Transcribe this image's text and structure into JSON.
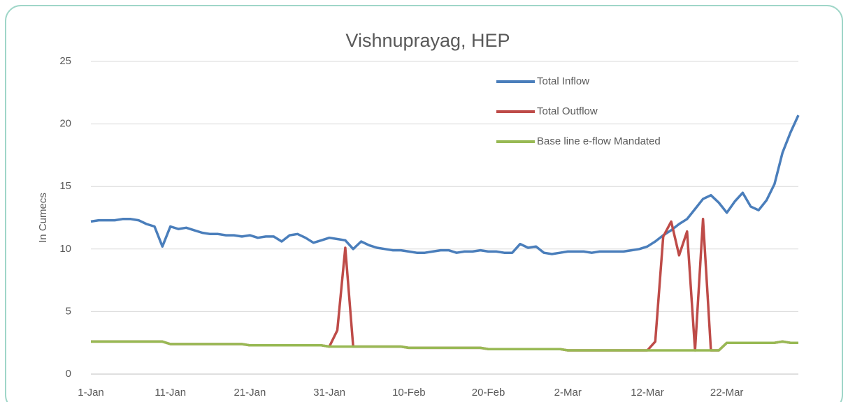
{
  "chart_data": {
    "type": "line",
    "title": "Vishnuprayag, HEP",
    "y_label": "In Cumecs",
    "categories": [
      "1-Jan",
      null,
      null,
      null,
      null,
      null,
      null,
      null,
      null,
      null,
      "11-Jan",
      null,
      null,
      null,
      null,
      null,
      null,
      null,
      null,
      null,
      "21-Jan",
      null,
      null,
      null,
      null,
      null,
      null,
      null,
      null,
      null,
      "31-Jan",
      null,
      null,
      null,
      null,
      null,
      null,
      null,
      null,
      null,
      "10-Feb",
      null,
      null,
      null,
      null,
      null,
      null,
      null,
      null,
      null,
      "20-Feb",
      null,
      null,
      null,
      null,
      null,
      null,
      null,
      null,
      null,
      "2-Mar",
      null,
      null,
      null,
      null,
      null,
      null,
      null,
      null,
      null,
      "12-Mar",
      null,
      null,
      null,
      null,
      null,
      null,
      null,
      null,
      null,
      "22-Mar",
      null,
      null,
      null,
      null,
      null,
      null,
      null,
      null,
      null
    ],
    "series": [
      {
        "name": "Total Inflow",
        "color": "#4a7ebb",
        "values": [
          12.2,
          12.3,
          12.3,
          12.3,
          12.4,
          12.4,
          12.3,
          12.0,
          11.8,
          10.2,
          11.8,
          11.6,
          11.7,
          11.5,
          11.3,
          11.2,
          11.2,
          11.1,
          11.1,
          11.0,
          11.1,
          10.9,
          11.0,
          11.0,
          10.6,
          11.1,
          11.2,
          10.9,
          10.5,
          10.7,
          10.9,
          10.8,
          10.7,
          10.0,
          10.6,
          10.3,
          10.1,
          10.0,
          9.9,
          9.9,
          9.8,
          9.7,
          9.7,
          9.8,
          9.9,
          9.9,
          9.7,
          9.8,
          9.8,
          9.9,
          9.8,
          9.8,
          9.7,
          9.7,
          10.4,
          10.1,
          10.2,
          9.7,
          9.6,
          9.7,
          9.8,
          9.8,
          9.8,
          9.7,
          9.8,
          9.8,
          9.8,
          9.8,
          9.9,
          10.0,
          10.2,
          10.6,
          11.1,
          11.5,
          12.0,
          12.4,
          13.2,
          14.0,
          14.3,
          13.7,
          12.9,
          13.8,
          14.5,
          13.4,
          13.1,
          13.9,
          15.2,
          17.7,
          19.3,
          20.7
        ]
      },
      {
        "name": "Total Outflow",
        "color": "#be4b48",
        "values": [
          2.6,
          2.6,
          2.6,
          2.6,
          2.6,
          2.6,
          2.6,
          2.6,
          2.6,
          2.6,
          2.4,
          2.4,
          2.4,
          2.4,
          2.4,
          2.4,
          2.4,
          2.4,
          2.4,
          2.4,
          2.3,
          2.3,
          2.3,
          2.3,
          2.3,
          2.3,
          2.3,
          2.3,
          2.3,
          2.3,
          2.2,
          3.5,
          10.1,
          2.2,
          2.2,
          2.2,
          2.2,
          2.2,
          2.2,
          2.2,
          2.1,
          2.1,
          2.1,
          2.1,
          2.1,
          2.1,
          2.1,
          2.1,
          2.1,
          2.1,
          2.0,
          2.0,
          2.0,
          2.0,
          2.0,
          2.0,
          2.0,
          2.0,
          2.0,
          2.0,
          1.9,
          1.9,
          1.9,
          1.9,
          1.9,
          1.9,
          1.9,
          1.9,
          1.9,
          1.9,
          1.9,
          2.6,
          11.0,
          12.2,
          9.5,
          11.4,
          1.9,
          12.4,
          1.9,
          1.9,
          2.5,
          2.5,
          2.5,
          2.5,
          2.5,
          2.5,
          2.5,
          2.6,
          2.5,
          2.5
        ]
      },
      {
        "name": "Base line e-flow Mandated",
        "color": "#98b954",
        "values": [
          2.6,
          2.6,
          2.6,
          2.6,
          2.6,
          2.6,
          2.6,
          2.6,
          2.6,
          2.6,
          2.4,
          2.4,
          2.4,
          2.4,
          2.4,
          2.4,
          2.4,
          2.4,
          2.4,
          2.4,
          2.3,
          2.3,
          2.3,
          2.3,
          2.3,
          2.3,
          2.3,
          2.3,
          2.3,
          2.3,
          2.2,
          2.2,
          2.2,
          2.2,
          2.2,
          2.2,
          2.2,
          2.2,
          2.2,
          2.2,
          2.1,
          2.1,
          2.1,
          2.1,
          2.1,
          2.1,
          2.1,
          2.1,
          2.1,
          2.1,
          2.0,
          2.0,
          2.0,
          2.0,
          2.0,
          2.0,
          2.0,
          2.0,
          2.0,
          2.0,
          1.9,
          1.9,
          1.9,
          1.9,
          1.9,
          1.9,
          1.9,
          1.9,
          1.9,
          1.9,
          1.9,
          1.9,
          1.9,
          1.9,
          1.9,
          1.9,
          1.9,
          1.9,
          1.9,
          1.9,
          2.5,
          2.5,
          2.5,
          2.5,
          2.5,
          2.5,
          2.5,
          2.6,
          2.5,
          2.5
        ]
      }
    ],
    "ylim": [
      0,
      25
    ],
    "yticks": [
      0,
      5,
      10,
      15,
      20,
      25
    ],
    "grid": true,
    "legend": "upper right"
  }
}
